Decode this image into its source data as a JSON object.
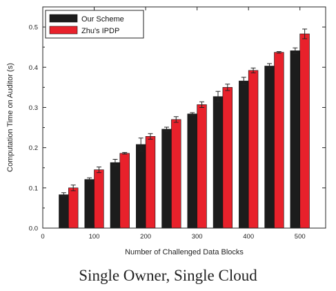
{
  "caption": "Single Owner, Single Cloud",
  "chart_data": {
    "type": "bar",
    "xlabel": "Number of Challenged Data Blocks",
    "ylabel": "Computation Time on Auditor (s)",
    "xlim": [
      0,
      550
    ],
    "ylim": [
      0.0,
      0.55
    ],
    "xticks": [
      "0",
      "100",
      "200",
      "300",
      "400",
      "500"
    ],
    "xtick_values": [
      0,
      100,
      200,
      300,
      400,
      500
    ],
    "yticks": [
      "0.0",
      "0.1",
      "0.2",
      "0.3",
      "0.4",
      "0.5"
    ],
    "ytick_values": [
      0.0,
      0.1,
      0.2,
      0.3,
      0.4,
      0.5
    ],
    "x": [
      50,
      100,
      150,
      200,
      250,
      300,
      350,
      400,
      450,
      500
    ],
    "legend_position": "top-left",
    "grid": false,
    "series": [
      {
        "name": "Our Scheme",
        "color": "#1c1c1c",
        "values": [
          0.083,
          0.121,
          0.163,
          0.208,
          0.246,
          0.284,
          0.327,
          0.366,
          0.403,
          0.441
        ],
        "errors": [
          0.005,
          0.004,
          0.008,
          0.016,
          0.005,
          0.003,
          0.013,
          0.009,
          0.006,
          0.007
        ]
      },
      {
        "name": "Zhu's IPDP",
        "color": "#e8212b",
        "values": [
          0.1,
          0.145,
          0.186,
          0.228,
          0.27,
          0.307,
          0.35,
          0.392,
          0.437,
          0.483
        ],
        "errors": [
          0.007,
          0.007,
          0.002,
          0.007,
          0.007,
          0.007,
          0.008,
          0.006,
          0.002,
          0.012
        ]
      }
    ]
  }
}
